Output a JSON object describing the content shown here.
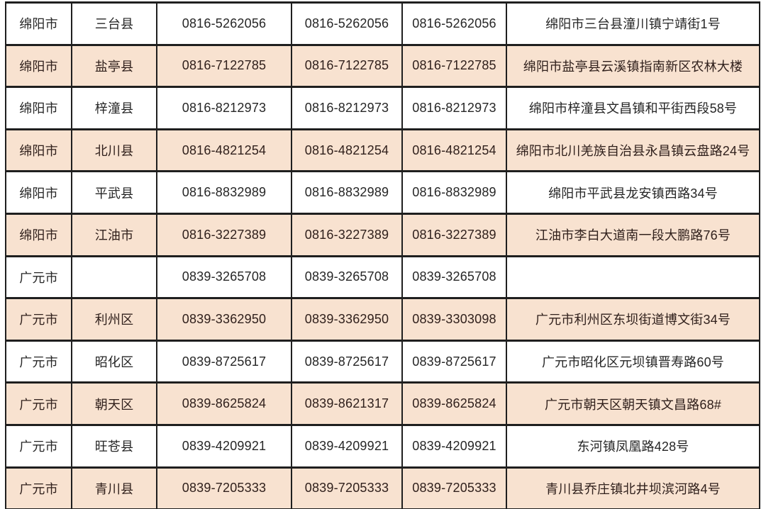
{
  "table": {
    "description": "City and county contact phone directory (Sichuan: Mianyang, Guangyuan)",
    "columns": [
      "city",
      "county",
      "phone1",
      "phone2",
      "phone3",
      "address"
    ],
    "rows": [
      {
        "city": "绵阳市",
        "county": "三台县",
        "phone1": "0816-5262056",
        "phone2": "0816-5262056",
        "phone3": "0816-5262056",
        "address": "绵阳市三台县潼川镇宁靖街1号"
      },
      {
        "city": "绵阳市",
        "county": "盐亭县",
        "phone1": "0816-7122785",
        "phone2": "0816-7122785",
        "phone3": "0816-7122785",
        "address": "绵阳市盐亭县云溪镇指南新区农林大楼"
      },
      {
        "city": "绵阳市",
        "county": "梓潼县",
        "phone1": "0816-8212973",
        "phone2": "0816-8212973",
        "phone3": "0816-8212973",
        "address": "绵阳市梓潼县文昌镇和平街西段58号"
      },
      {
        "city": "绵阳市",
        "county": "北川县",
        "phone1": "0816-4821254",
        "phone2": "0816-4821254",
        "phone3": "0816-4821254",
        "address": "绵阳市北川羌族自治县永昌镇云盘路24号"
      },
      {
        "city": "绵阳市",
        "county": "平武县",
        "phone1": "0816-8832989",
        "phone2": "0816-8832989",
        "phone3": "0816-8832989",
        "address": "绵阳市平武县龙安镇西路34号"
      },
      {
        "city": "绵阳市",
        "county": "江油市",
        "phone1": "0816-3227389",
        "phone2": "0816-3227389",
        "phone3": "0816-3227389",
        "address": "江油市李白大道南一段大鹏路76号"
      },
      {
        "city": "广元市",
        "county": "",
        "phone1": "0839-3265708",
        "phone2": "0839-3265708",
        "phone3": "0839-3265708",
        "address": ""
      },
      {
        "city": "广元市",
        "county": "利州区",
        "phone1": "0839-3362950",
        "phone2": "0839-3362950",
        "phone3": "0839-3303098",
        "address": "广元市利州区东坝街道博文街34号"
      },
      {
        "city": "广元市",
        "county": "昭化区",
        "phone1": "0839-8725617",
        "phone2": "0839-8725617",
        "phone3": "0839-8725617",
        "address": "广元市昭化区元坝镇晋寿路60号"
      },
      {
        "city": "广元市",
        "county": "朝天区",
        "phone1": "0839-8625824",
        "phone2": "0839-8621317",
        "phone3": "0839-8625824",
        "address": "广元市朝天区朝天镇文昌路68#"
      },
      {
        "city": "广元市",
        "county": "旺苍县",
        "phone1": "0839-4209921",
        "phone2": "0839-4209921",
        "phone3": "0839-4209921",
        "address": "东河镇凤凰路428号"
      },
      {
        "city": "广元市",
        "county": "青川县",
        "phone1": "0839-7205333",
        "phone2": "0839-7205333",
        "phone3": "0839-7205333",
        "address": "青川县乔庄镇北井坝滨河路4号"
      }
    ]
  },
  "colors": {
    "background": "#ffffff",
    "row_stripe": "#f8e2d0",
    "border": "#1f1f1f",
    "text": "#262626",
    "stripe_text": "#30201c"
  }
}
